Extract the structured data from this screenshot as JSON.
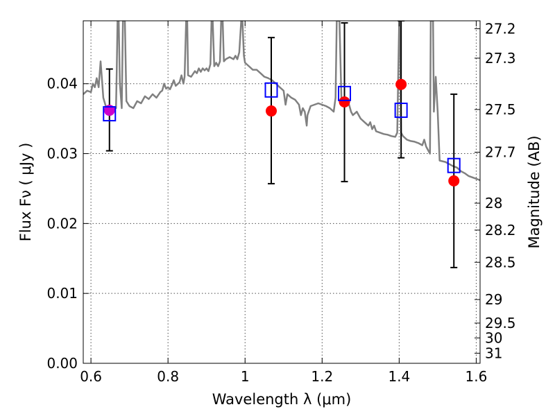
{
  "chart_data": {
    "type": "scatter",
    "xlabel": "Wavelength  λ (μm)",
    "ylabel": "Flux  Fν  ( μJy )",
    "y2label": "Magnitude (AB)",
    "xlim": [
      0.58,
      1.61
    ],
    "ylim": [
      0.0,
      0.049
    ],
    "grid": true,
    "x_ticks": [
      {
        "value": 0.6,
        "label": "0.6"
      },
      {
        "value": 0.8,
        "label": "0.8"
      },
      {
        "value": 1.0,
        "label": "1"
      },
      {
        "value": 1.2,
        "label": "1.2"
      },
      {
        "value": 1.4,
        "label": "1.4"
      },
      {
        "value": 1.6,
        "label": "1.6"
      }
    ],
    "y_ticks": [
      {
        "value": 0.0,
        "label": "0.00"
      },
      {
        "value": 0.01,
        "label": "0.01"
      },
      {
        "value": 0.02,
        "label": "0.02"
      },
      {
        "value": 0.03,
        "label": "0.03"
      },
      {
        "value": 0.04,
        "label": "0.04"
      }
    ],
    "y2_ticks": [
      {
        "value": 27.2,
        "label": "27.2"
      },
      {
        "value": 27.3,
        "label": "27.3"
      },
      {
        "value": 27.5,
        "label": "27.5"
      },
      {
        "value": 27.7,
        "label": "27.7"
      },
      {
        "value": 28.0,
        "label": "28"
      },
      {
        "value": 28.2,
        "label": "28.2"
      },
      {
        "value": 28.5,
        "label": "28.5"
      },
      {
        "value": 29.0,
        "label": "29"
      },
      {
        "value": 29.5,
        "label": "29.5"
      },
      {
        "value": 30.0,
        "label": "30"
      },
      {
        "value": 31.0,
        "label": "31"
      }
    ],
    "series": [
      {
        "kind": "line",
        "color": "#808080",
        "points": [
          [
            0.58,
            0.0385
          ],
          [
            0.59,
            0.039
          ],
          [
            0.6,
            0.0388
          ],
          [
            0.605,
            0.04
          ],
          [
            0.61,
            0.0395
          ],
          [
            0.615,
            0.0408
          ],
          [
            0.62,
            0.0395
          ],
          [
            0.625,
            0.0432
          ],
          [
            0.628,
            0.041
          ],
          [
            0.632,
            0.038
          ],
          [
            0.64,
            0.0365
          ],
          [
            0.65,
            0.0362
          ],
          [
            0.66,
            0.0364
          ],
          [
            0.665,
            0.0365
          ],
          [
            0.667,
            0.042
          ],
          [
            0.669,
            0.049
          ],
          [
            0.672,
            0.049
          ],
          [
            0.675,
            0.04
          ],
          [
            0.68,
            0.0365
          ],
          [
            0.683,
            0.049
          ],
          [
            0.688,
            0.049
          ],
          [
            0.692,
            0.0375
          ],
          [
            0.7,
            0.0368
          ],
          [
            0.71,
            0.0365
          ],
          [
            0.72,
            0.0375
          ],
          [
            0.73,
            0.0372
          ],
          [
            0.74,
            0.0382
          ],
          [
            0.75,
            0.0378
          ],
          [
            0.76,
            0.0385
          ],
          [
            0.77,
            0.038
          ],
          [
            0.78,
            0.0388
          ],
          [
            0.785,
            0.039
          ],
          [
            0.79,
            0.04
          ],
          [
            0.795,
            0.0393
          ],
          [
            0.8,
            0.0395
          ],
          [
            0.805,
            0.0392
          ],
          [
            0.81,
            0.0398
          ],
          [
            0.815,
            0.0405
          ],
          [
            0.82,
            0.0397
          ],
          [
            0.83,
            0.0402
          ],
          [
            0.835,
            0.0412
          ],
          [
            0.84,
            0.04
          ],
          [
            0.843,
            0.041
          ],
          [
            0.847,
            0.049
          ],
          [
            0.85,
            0.049
          ],
          [
            0.852,
            0.0412
          ],
          [
            0.86,
            0.041
          ],
          [
            0.87,
            0.0418
          ],
          [
            0.875,
            0.0415
          ],
          [
            0.88,
            0.0422
          ],
          [
            0.885,
            0.0417
          ],
          [
            0.89,
            0.0422
          ],
          [
            0.895,
            0.0419
          ],
          [
            0.9,
            0.0422
          ],
          [
            0.905,
            0.0418
          ],
          [
            0.91,
            0.0428
          ],
          [
            0.913,
            0.049
          ],
          [
            0.916,
            0.049
          ],
          [
            0.92,
            0.0425
          ],
          [
            0.925,
            0.043
          ],
          [
            0.93,
            0.0425
          ],
          [
            0.935,
            0.0432
          ],
          [
            0.938,
            0.049
          ],
          [
            0.942,
            0.049
          ],
          [
            0.945,
            0.0432
          ],
          [
            0.95,
            0.0435
          ],
          [
            0.96,
            0.0438
          ],
          [
            0.97,
            0.0435
          ],
          [
            0.975,
            0.044
          ],
          [
            0.98,
            0.0435
          ],
          [
            0.985,
            0.0445
          ],
          [
            0.99,
            0.049
          ],
          [
            0.993,
            0.049
          ],
          [
            0.997,
            0.044
          ],
          [
            1.0,
            0.043
          ],
          [
            1.01,
            0.0425
          ],
          [
            1.02,
            0.042
          ],
          [
            1.03,
            0.042
          ],
          [
            1.04,
            0.0415
          ],
          [
            1.05,
            0.041
          ],
          [
            1.06,
            0.0408
          ],
          [
            1.07,
            0.0405
          ],
          [
            1.08,
            0.04
          ],
          [
            1.09,
            0.0395
          ],
          [
            1.1,
            0.039
          ],
          [
            1.105,
            0.037
          ],
          [
            1.11,
            0.0385
          ],
          [
            1.12,
            0.038
          ],
          [
            1.13,
            0.0377
          ],
          [
            1.14,
            0.037
          ],
          [
            1.145,
            0.0355
          ],
          [
            1.15,
            0.0365
          ],
          [
            1.155,
            0.036
          ],
          [
            1.16,
            0.034
          ],
          [
            1.162,
            0.0355
          ],
          [
            1.17,
            0.0368
          ],
          [
            1.18,
            0.037
          ],
          [
            1.19,
            0.0372
          ],
          [
            1.2,
            0.037
          ],
          [
            1.21,
            0.0368
          ],
          [
            1.22,
            0.0365
          ],
          [
            1.23,
            0.036
          ],
          [
            1.235,
            0.038
          ],
          [
            1.238,
            0.049
          ],
          [
            1.245,
            0.049
          ],
          [
            1.25,
            0.038
          ],
          [
            1.26,
            0.0375
          ],
          [
            1.27,
            0.037
          ],
          [
            1.275,
            0.036
          ],
          [
            1.28,
            0.0355
          ],
          [
            1.29,
            0.036
          ],
          [
            1.3,
            0.035
          ],
          [
            1.31,
            0.0345
          ],
          [
            1.32,
            0.034
          ],
          [
            1.325,
            0.0345
          ],
          [
            1.33,
            0.0335
          ],
          [
            1.335,
            0.034
          ],
          [
            1.34,
            0.0332
          ],
          [
            1.35,
            0.033
          ],
          [
            1.36,
            0.0328
          ],
          [
            1.37,
            0.0327
          ],
          [
            1.38,
            0.0325
          ],
          [
            1.39,
            0.0324
          ],
          [
            1.395,
            0.033
          ],
          [
            1.4,
            0.049
          ],
          [
            1.402,
            0.049
          ],
          [
            1.405,
            0.033
          ],
          [
            1.41,
            0.0325
          ],
          [
            1.42,
            0.032
          ],
          [
            1.43,
            0.0318
          ],
          [
            1.44,
            0.0317
          ],
          [
            1.45,
            0.0315
          ],
          [
            1.46,
            0.0312
          ],
          [
            1.465,
            0.032
          ],
          [
            1.47,
            0.031
          ],
          [
            1.475,
            0.0305
          ],
          [
            1.48,
            0.03
          ],
          [
            1.482,
            0.049
          ],
          [
            1.488,
            0.049
          ],
          [
            1.49,
            0.036
          ],
          [
            1.495,
            0.041
          ],
          [
            1.5,
            0.036
          ],
          [
            1.505,
            0.029
          ],
          [
            1.52,
            0.0288
          ],
          [
            1.53,
            0.0285
          ],
          [
            1.54,
            0.0282
          ],
          [
            1.55,
            0.028
          ],
          [
            1.56,
            0.0275
          ],
          [
            1.57,
            0.0272
          ],
          [
            1.58,
            0.0268
          ],
          [
            1.59,
            0.0266
          ],
          [
            1.6,
            0.0264
          ],
          [
            1.61,
            0.0262
          ]
        ]
      },
      {
        "kind": "error-bars",
        "color": "#000000",
        "points": [
          {
            "x": 0.648,
            "low": 0.0304,
            "high": 0.0421
          },
          {
            "x": 1.068,
            "low": 0.0257,
            "high": 0.0466
          },
          {
            "x": 1.258,
            "low": 0.026,
            "high": 0.0487
          },
          {
            "x": 1.405,
            "low": 0.0294,
            "high": 0.049
          },
          {
            "x": 1.542,
            "low": 0.0137,
            "high": 0.0385
          }
        ]
      },
      {
        "kind": "filled-circle",
        "color": "#ff0000",
        "points": [
          [
            0.648,
            0.0362
          ],
          [
            1.068,
            0.0361
          ],
          [
            1.258,
            0.0374
          ],
          [
            1.405,
            0.0399
          ],
          [
            1.542,
            0.0261
          ]
        ]
      },
      {
        "kind": "open-square",
        "color": "#0000ff",
        "points": [
          [
            0.648,
            0.0357
          ],
          [
            1.068,
            0.0391
          ],
          [
            1.258,
            0.0386
          ],
          [
            1.405,
            0.0362
          ],
          [
            1.542,
            0.0283
          ]
        ]
      }
    ],
    "overlap_color": "#cc00cc"
  }
}
